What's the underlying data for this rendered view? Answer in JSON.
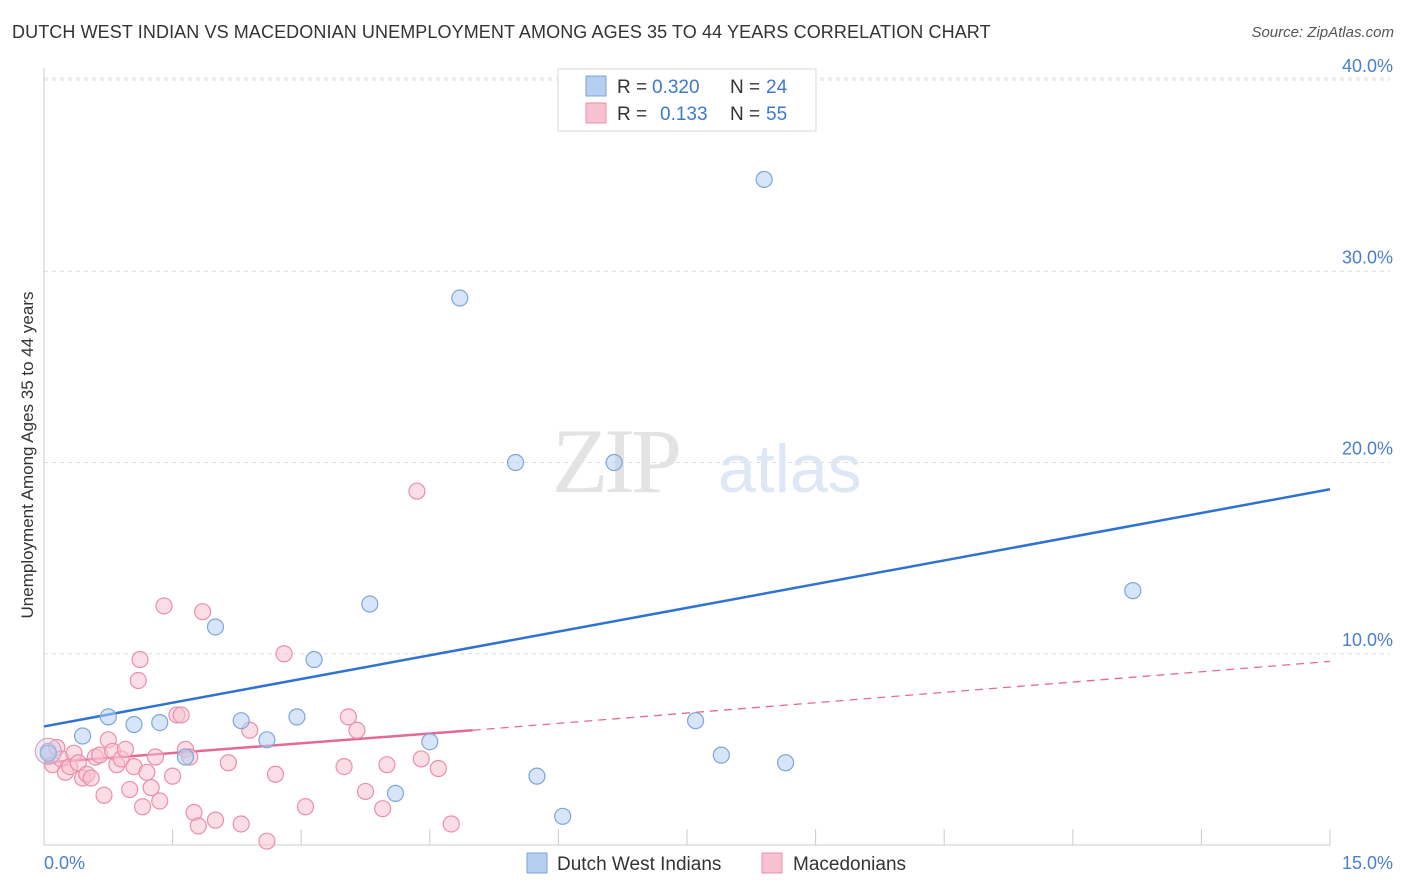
{
  "title": "DUTCH WEST INDIAN VS MACEDONIAN UNEMPLOYMENT AMONG AGES 35 TO 44 YEARS CORRELATION CHART",
  "source": "Source: ZipAtlas.com",
  "watermark": {
    "zip": "ZIP",
    "atlas": "atlas"
  },
  "legend_stats": [
    {
      "r_label": "R =",
      "r_value": "0.320",
      "n_label": "N =",
      "n_value": "24"
    },
    {
      "r_label": "R =",
      "r_value": "0.133",
      "n_label": "N =",
      "n_value": "55"
    }
  ],
  "colors": {
    "blue_fill": "#b5cff0",
    "blue_stroke": "#7fa6da",
    "blue_line": "#2e72d2",
    "pink_fill": "#f7c1d1",
    "pink_stroke": "#ea8fab",
    "pink_line": "#e56a93",
    "tick_text": "#4a7fcc",
    "grid": "#dddddd"
  },
  "chart_data": {
    "type": "scatter",
    "title": "DUTCH WEST INDIAN VS MACEDONIAN UNEMPLOYMENT AMONG AGES 35 TO 44 YEARS CORRELATION CHART",
    "xlabel": "",
    "ylabel": "Unemployment Among Ages 35 to 44 years",
    "xlim": [
      0,
      15
    ],
    "ylim": [
      0,
      40
    ],
    "x_tick_labels": [
      "0.0%",
      "15.0%"
    ],
    "y_ticks": [
      10,
      20,
      30,
      40
    ],
    "y_tick_labels": [
      "10.0%",
      "20.0%",
      "30.0%",
      "40.0%"
    ],
    "legend_position": "bottom-center",
    "series": [
      {
        "name": "Dutch West Indians",
        "color": "#b5cff0",
        "points": [
          [
            0.05,
            4.8
          ],
          [
            0.45,
            5.7
          ],
          [
            0.75,
            6.7
          ],
          [
            1.05,
            6.3
          ],
          [
            1.35,
            6.4
          ],
          [
            1.65,
            4.6
          ],
          [
            2.0,
            11.4
          ],
          [
            2.3,
            6.5
          ],
          [
            2.6,
            5.5
          ],
          [
            2.95,
            6.7
          ],
          [
            3.15,
            9.7
          ],
          [
            3.8,
            12.6
          ],
          [
            4.1,
            2.7
          ],
          [
            4.5,
            5.4
          ],
          [
            4.85,
            28.6
          ],
          [
            5.5,
            20.0
          ],
          [
            5.75,
            3.6
          ],
          [
            6.05,
            1.5
          ],
          [
            6.65,
            20.0
          ],
          [
            7.6,
            6.5
          ],
          [
            7.9,
            4.7
          ],
          [
            8.4,
            34.8
          ],
          [
            8.65,
            4.3
          ],
          [
            12.7,
            13.3
          ]
        ],
        "trend": {
          "x": [
            0,
            15
          ],
          "y": [
            6.2,
            18.6
          ]
        }
      },
      {
        "name": "Macedonians",
        "color": "#f7c1d1",
        "points": [
          [
            0.05,
            4.9
          ],
          [
            0.1,
            4.2
          ],
          [
            0.15,
            5.1
          ],
          [
            0.2,
            4.5
          ],
          [
            0.25,
            3.8
          ],
          [
            0.3,
            4.1
          ],
          [
            0.35,
            4.8
          ],
          [
            0.4,
            4.3
          ],
          [
            0.45,
            3.5
          ],
          [
            0.5,
            3.7
          ],
          [
            0.55,
            3.5
          ],
          [
            0.6,
            4.6
          ],
          [
            0.65,
            4.7
          ],
          [
            0.7,
            2.6
          ],
          [
            0.75,
            5.5
          ],
          [
            0.8,
            4.9
          ],
          [
            0.85,
            4.2
          ],
          [
            0.9,
            4.5
          ],
          [
            0.95,
            5.0
          ],
          [
            1.0,
            2.9
          ],
          [
            1.05,
            4.1
          ],
          [
            1.1,
            8.6
          ],
          [
            1.12,
            9.7
          ],
          [
            1.15,
            2.0
          ],
          [
            1.2,
            3.8
          ],
          [
            1.25,
            3.0
          ],
          [
            1.3,
            4.6
          ],
          [
            1.35,
            2.3
          ],
          [
            1.4,
            12.5
          ],
          [
            1.5,
            3.6
          ],
          [
            1.55,
            6.8
          ],
          [
            1.6,
            6.8
          ],
          [
            1.65,
            5.0
          ],
          [
            1.7,
            4.6
          ],
          [
            1.75,
            1.7
          ],
          [
            1.8,
            1.0
          ],
          [
            1.85,
            12.2
          ],
          [
            2.0,
            1.3
          ],
          [
            2.15,
            4.3
          ],
          [
            2.3,
            1.1
          ],
          [
            2.4,
            6.0
          ],
          [
            2.6,
            0.2
          ],
          [
            2.7,
            3.7
          ],
          [
            2.8,
            10.0
          ],
          [
            3.05,
            2.0
          ],
          [
            3.5,
            4.1
          ],
          [
            3.55,
            6.7
          ],
          [
            3.65,
            6.0
          ],
          [
            3.75,
            2.8
          ],
          [
            3.95,
            1.9
          ],
          [
            4.0,
            4.2
          ],
          [
            4.4,
            4.5
          ],
          [
            4.6,
            4.0
          ],
          [
            4.75,
            1.1
          ],
          [
            4.35,
            18.5
          ]
        ],
        "trend": {
          "x": [
            0,
            5.0
          ],
          "y": [
            4.3,
            6.0
          ]
        },
        "trend_extended": {
          "x": [
            5.0,
            15
          ],
          "y": [
            6.0,
            9.6
          ]
        }
      }
    ]
  }
}
